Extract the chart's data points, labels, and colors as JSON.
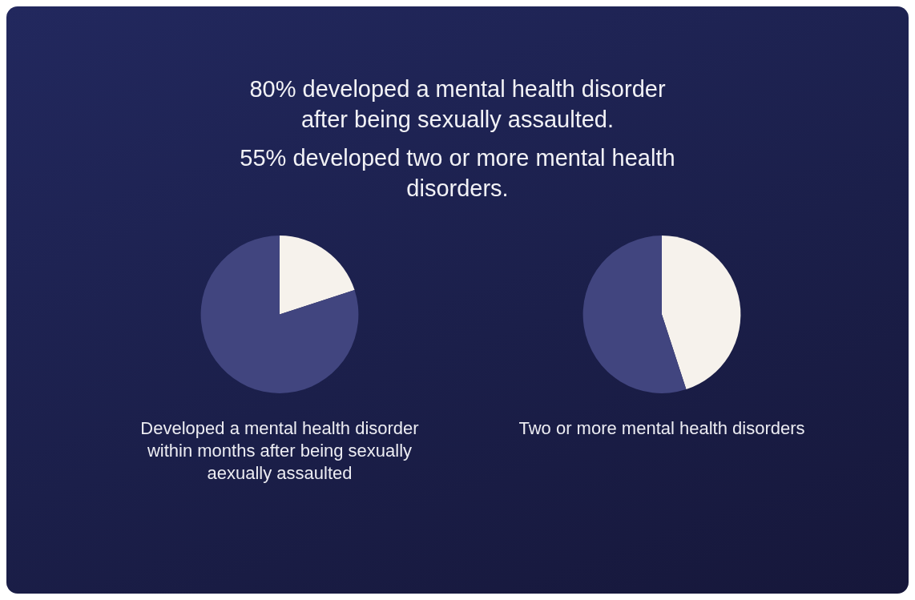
{
  "chart_data": [
    {
      "type": "pie",
      "title": "80% developed a mental health disorder after being sexually assaulted.",
      "xlabel": "Developed a mental health disorder within months after being sexually aexually assaulted",
      "categories": [
        null,
        null
      ],
      "values": [
        20,
        80
      ],
      "colors": [
        "#f6f2ec",
        "#41457f"
      ]
    },
    {
      "type": "pie",
      "title": "55% developed two or more mental health disorders.",
      "xlabel": "Two or more mental health disorders",
      "categories": [
        null,
        null
      ],
      "values": [
        45,
        55
      ],
      "colors": [
        "#f6f2ec",
        "#41457f"
      ]
    }
  ]
}
